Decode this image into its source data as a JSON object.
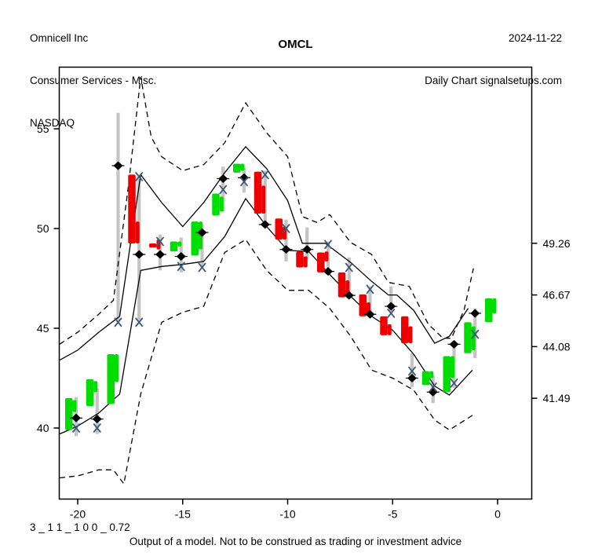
{
  "header": {
    "company": "Omnicell Inc",
    "sector": "Consumer Services - Misc.",
    "exchange": "NASDAQ",
    "date": "2024-11-22",
    "chart_type": "Daily Chart signalsetups.com",
    "title": "OMCL"
  },
  "footer": {
    "model_params": "3 _ 1 1 _ 1 0 0 _ 0.72",
    "disclaimer": "Output of a model. Not to be construed as trading or investment advice"
  },
  "chart_data": {
    "type": "candlestick",
    "title": "OMCL",
    "x_axis": {
      "ticks": [
        {
          "v": -20,
          "label": "-20"
        },
        {
          "v": -15,
          "label": "-15"
        },
        {
          "v": -10,
          "label": "-10"
        },
        {
          "v": -5,
          "label": "-5"
        },
        {
          "v": 0,
          "label": "0"
        }
      ]
    },
    "y_axis_left": {
      "ticks": [
        {
          "v": 40,
          "label": "40"
        },
        {
          "v": 45,
          "label": "45"
        },
        {
          "v": 50,
          "label": "50"
        },
        {
          "v": 55,
          "label": "55"
        }
      ]
    },
    "y_axis_right": {
      "ticks": [
        {
          "v": 49.26,
          "label": "49.26"
        },
        {
          "v": 46.67,
          "label": "46.67"
        },
        {
          "v": 44.08,
          "label": "44.08"
        },
        {
          "v": 41.49,
          "label": "41.49"
        }
      ]
    },
    "ylim": [
      36.5,
      58.1
    ],
    "xlim": [
      -21.5,
      1.6
    ],
    "grid": false,
    "colors": {
      "up": "#00dd00",
      "down": "#ee0000",
      "range_bar": "#c4c4c4",
      "x_marker": "#3b5878",
      "diamond": "#000000",
      "line": "#000000"
    },
    "candles": [
      {
        "d": -20,
        "dir": "up",
        "body": [
          41.5,
          39.9
        ],
        "body2": [
          41.4,
          40.8
        ],
        "range": [
          41.55,
          39.6
        ],
        "xm": [
          40.0
        ],
        "dia": 40.5
      },
      {
        "d": -19,
        "dir": "up",
        "body": [
          42.45,
          41.1
        ],
        "body2": [
          42.35,
          41.8
        ],
        "range": [
          42.0,
          39.7
        ],
        "xm": [
          40.0
        ],
        "dia": 40.45
      },
      {
        "d": -18,
        "dir": "up",
        "body": [
          43.7,
          41.2
        ],
        "body2": [
          43.7,
          42.3
        ],
        "range": [
          55.8,
          45.4
        ],
        "xm": [
          45.3
        ],
        "dia": 53.15
      },
      {
        "d": -17,
        "dir": "down",
        "body": [
          52.7,
          49.25
        ],
        "body2": [
          50.35,
          49.25
        ],
        "range": [
          52.7,
          45.4
        ],
        "xm": [
          52.6,
          45.3
        ],
        "dia": 48.7
      },
      {
        "d": -16,
        "dir": "down",
        "body": [
          49.25,
          49.05
        ],
        "body2": [
          49.45,
          48.95
        ],
        "range": [
          49.7,
          47.9
        ],
        "xm": [
          49.35
        ],
        "dia": 48.7
      },
      {
        "d": -15,
        "dir": "up",
        "body": [
          49.35,
          48.85
        ],
        "body2": [
          49.35,
          49.1
        ],
        "range": [
          49.55,
          47.8
        ],
        "xm": [
          48.1
        ],
        "dia": 48.6
      },
      {
        "d": -14,
        "dir": "up",
        "body": [
          50.35,
          48.65
        ],
        "body2": [
          50.35,
          48.95
        ],
        "range": [
          50.2,
          48.05
        ],
        "xm": [
          48.05
        ],
        "dia": 49.8
      },
      {
        "d": -13,
        "dir": "up",
        "body": [
          51.75,
          50.65
        ],
        "body2": [
          51.6,
          50.85
        ],
        "range": [
          53.1,
          50.85
        ],
        "xm": [
          51.95
        ],
        "dia": 52.5
      },
      {
        "d": -12,
        "dir": "up",
        "body": [
          53.25,
          52.8
        ],
        "body2": [
          53.25,
          52.9
        ],
        "range": [
          53.05,
          51.8
        ],
        "xm": [
          52.35
        ],
        "dia": 52.55
      },
      {
        "d": -11,
        "dir": "down",
        "body": [
          52.85,
          50.75
        ],
        "body2": [
          52.15,
          50.75
        ],
        "range": [
          52.9,
          50.05
        ],
        "xm": [
          52.7
        ],
        "dia": 50.2
      },
      {
        "d": -10,
        "dir": "down",
        "body": [
          50.5,
          49.45
        ],
        "body2": [
          50.1,
          49.45
        ],
        "range": [
          50.45,
          48.35
        ],
        "xm": [
          50.0
        ],
        "dia": 48.95
      },
      {
        "d": -9,
        "dir": "down",
        "body": [
          48.85,
          48.05
        ],
        "body2": [
          48.6,
          48.05
        ],
        "range": [
          50.05,
          48.45
        ],
        "xm": [],
        "dia": 48.95
      },
      {
        "d": -8,
        "dir": "down",
        "body": [
          48.8,
          47.8
        ],
        "body2": [
          48.85,
          48.35
        ],
        "range": [
          49.35,
          47.8
        ],
        "xm": [
          49.2
        ],
        "dia": 47.85
      },
      {
        "d": -7,
        "dir": "down",
        "body": [
          47.8,
          46.55
        ],
        "body2": [
          47.4,
          46.55
        ],
        "range": [
          48.55,
          46.75
        ],
        "xm": [
          48.05
        ],
        "dia": 46.65
      },
      {
        "d": -6,
        "dir": "down",
        "body": [
          46.7,
          45.6
        ],
        "body2": [
          46.3,
          45.6
        ],
        "range": [
          47.1,
          45.7
        ],
        "xm": [
          46.95
        ],
        "dia": 45.7
      },
      {
        "d": -5,
        "dir": "down",
        "body": [
          45.6,
          44.65
        ],
        "body2": [
          45.2,
          44.65
        ],
        "range": [
          47.1,
          45.8
        ],
        "xm": [
          45.75
        ],
        "dia": 46.1
      },
      {
        "d": -4,
        "dir": "down",
        "body": [
          45.6,
          44.25
        ],
        "body2": [
          45.1,
          44.25
        ],
        "range": [
          43.75,
          42.05
        ],
        "xm": [
          42.85
        ],
        "dia": 42.5
      },
      {
        "d": -3,
        "dir": "up",
        "body": [
          42.85,
          42.15
        ],
        "body2": [
          42.85,
          42.5
        ],
        "range": [
          42.65,
          41.25
        ],
        "xm": [
          42.05
        ],
        "dia": 41.8
      },
      {
        "d": -2,
        "dir": "up",
        "body": [
          43.6,
          41.8
        ],
        "body2": [
          43.6,
          42.5
        ],
        "range": [
          44.25,
          42.0
        ],
        "xm": [
          42.25
        ],
        "dia": 44.2
      },
      {
        "d": -1,
        "dir": "up",
        "body": [
          45.3,
          43.75
        ],
        "body2": [
          45.1,
          43.9
        ],
        "range": [
          46.0,
          43.5
        ],
        "xm": [
          44.7
        ],
        "dia": 45.75
      },
      {
        "d": 0,
        "dir": "up",
        "body": [
          46.5,
          45.3
        ],
        "body2": [
          46.5,
          45.75
        ],
        "range": null,
        "xm": [],
        "dia": null
      }
    ],
    "curves": {
      "upper_dashed": [
        [
          -21,
          44.2
        ],
        [
          -20,
          44.8
        ],
        [
          -19,
          45.7
        ],
        [
          -18.3,
          46.4
        ],
        [
          -17.6,
          52.0
        ],
        [
          -17,
          57.6
        ],
        [
          -16.5,
          54.6
        ],
        [
          -16,
          53.6
        ],
        [
          -15,
          52.9
        ],
        [
          -14,
          53.2
        ],
        [
          -13,
          54.3
        ],
        [
          -12,
          56.3
        ],
        [
          -11,
          54.8
        ],
        [
          -10,
          53.6
        ],
        [
          -9.3,
          50.6
        ],
        [
          -8.6,
          50.3
        ],
        [
          -8,
          50.7
        ],
        [
          -7,
          49.3
        ],
        [
          -6,
          48.7
        ],
        [
          -5.2,
          47.3
        ],
        [
          -4.2,
          47.1
        ],
        [
          -3.3,
          45.2
        ],
        [
          -2.6,
          44.5
        ],
        [
          -2.2,
          44.5
        ],
        [
          -1.6,
          45.9
        ],
        [
          -1.15,
          48.0
        ]
      ],
      "upper_solid": [
        [
          -21,
          43.4
        ],
        [
          -20,
          43.9
        ],
        [
          -19,
          44.8
        ],
        [
          -18,
          45.6
        ],
        [
          -17,
          52.7
        ],
        [
          -16,
          51.3
        ],
        [
          -15,
          50.1
        ],
        [
          -14,
          51.3
        ],
        [
          -13,
          52.8
        ],
        [
          -12,
          54.1
        ],
        [
          -11,
          53.0
        ],
        [
          -10,
          51.4
        ],
        [
          -9.3,
          49.26
        ],
        [
          -8.2,
          49.26
        ],
        [
          -7,
          48.3
        ],
        [
          -6,
          47.35
        ],
        [
          -5.2,
          46.67
        ],
        [
          -4.8,
          46.67
        ],
        [
          -4,
          45.9
        ],
        [
          -3,
          44.25
        ],
        [
          -2.3,
          44.6
        ],
        [
          -1.4,
          46.0
        ]
      ],
      "lower_solid": [
        [
          -21,
          39.7
        ],
        [
          -20,
          40.1
        ],
        [
          -19,
          40.75
        ],
        [
          -18,
          41.7
        ],
        [
          -17,
          47.9
        ],
        [
          -16,
          48.1
        ],
        [
          -15,
          48.2
        ],
        [
          -14,
          48.35
        ],
        [
          -13,
          49.6
        ],
        [
          -12,
          51.5
        ],
        [
          -11,
          50.1
        ],
        [
          -10,
          48.9
        ],
        [
          -9,
          48.85
        ],
        [
          -8,
          47.7
        ],
        [
          -7,
          46.6
        ],
        [
          -6,
          45.6
        ],
        [
          -5,
          44.9
        ],
        [
          -4,
          43.7
        ],
        [
          -3,
          42.1
        ],
        [
          -2.3,
          41.65
        ],
        [
          -1.2,
          42.9
        ]
      ],
      "lower_dashed": [
        [
          -21,
          37.5
        ],
        [
          -20,
          37.6
        ],
        [
          -19,
          37.9
        ],
        [
          -18.3,
          37.9
        ],
        [
          -17.8,
          37.2
        ],
        [
          -17,
          41.7
        ],
        [
          -16,
          45.3
        ],
        [
          -15,
          45.8
        ],
        [
          -14,
          46.1
        ],
        [
          -13,
          48.8
        ],
        [
          -12,
          49.45
        ],
        [
          -11,
          47.9
        ],
        [
          -10,
          46.9
        ],
        [
          -9,
          46.9
        ],
        [
          -8,
          46.0
        ],
        [
          -7,
          44.6
        ],
        [
          -6,
          42.9
        ],
        [
          -5,
          42.5
        ],
        [
          -4,
          41.9
        ],
        [
          -3,
          40.4
        ],
        [
          -2.3,
          39.9
        ],
        [
          -1.1,
          40.7
        ]
      ]
    }
  }
}
